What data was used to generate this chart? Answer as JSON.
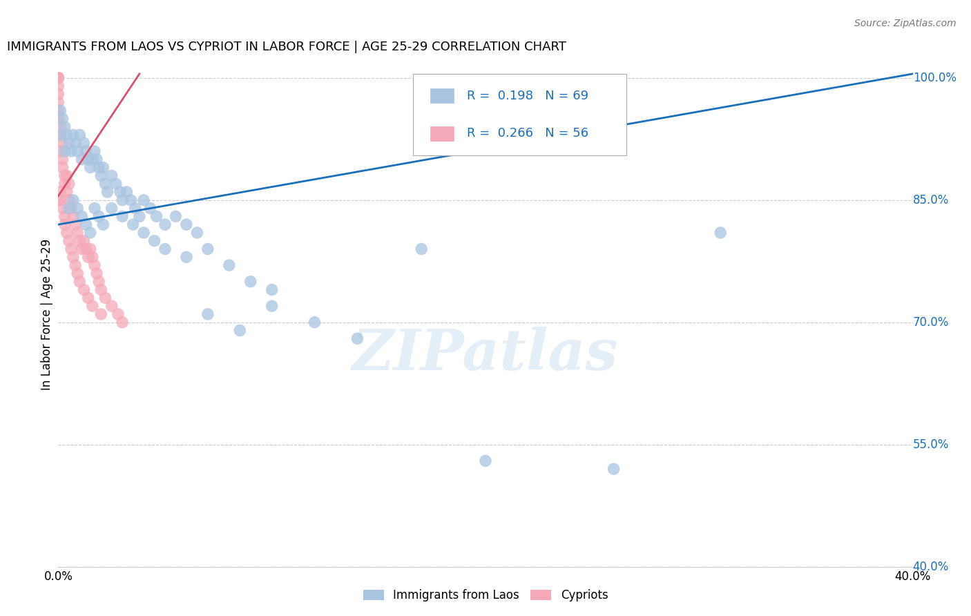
{
  "title": "IMMIGRANTS FROM LAOS VS CYPRIOT IN LABOR FORCE | AGE 25-29 CORRELATION CHART",
  "source": "Source: ZipAtlas.com",
  "ylabel": "In Labor Force | Age 25-29",
  "xlim": [
    0.0,
    0.4
  ],
  "ylim": [
    0.4,
    1.02
  ],
  "yticks": [
    0.4,
    0.55,
    0.7,
    0.85,
    1.0
  ],
  "xticks": [
    0.0,
    0.05,
    0.1,
    0.15,
    0.2,
    0.25,
    0.3,
    0.35,
    0.4
  ],
  "blue_R": 0.198,
  "blue_N": 69,
  "pink_R": 0.266,
  "pink_N": 56,
  "blue_color": "#a8c4e0",
  "pink_color": "#f4a8b8",
  "blue_line_color": "#1a6fbd",
  "pink_line_color": "#d94f6e",
  "watermark_text": "ZIPatlas",
  "blue_line": [
    0.0,
    0.82,
    0.4,
    1.005
  ],
  "pink_line": [
    0.0,
    0.855,
    0.038,
    1.005
  ],
  "blue_scatter_x": [
    0.001,
    0.001,
    0.002,
    0.003,
    0.003,
    0.004,
    0.005,
    0.006,
    0.007,
    0.008,
    0.009,
    0.01,
    0.011,
    0.012,
    0.013,
    0.014,
    0.015,
    0.016,
    0.017,
    0.018,
    0.019,
    0.02,
    0.021,
    0.022,
    0.023,
    0.025,
    0.027,
    0.029,
    0.03,
    0.032,
    0.034,
    0.036,
    0.038,
    0.04,
    0.043,
    0.046,
    0.05,
    0.055,
    0.06,
    0.065,
    0.07,
    0.08,
    0.09,
    0.1,
    0.005,
    0.007,
    0.009,
    0.011,
    0.013,
    0.015,
    0.017,
    0.019,
    0.021,
    0.025,
    0.03,
    0.035,
    0.04,
    0.045,
    0.05,
    0.06,
    0.07,
    0.085,
    0.1,
    0.12,
    0.14,
    0.17,
    0.2,
    0.26,
    0.31
  ],
  "blue_scatter_y": [
    0.96,
    0.93,
    0.95,
    0.94,
    0.91,
    0.93,
    0.92,
    0.91,
    0.93,
    0.92,
    0.91,
    0.93,
    0.9,
    0.92,
    0.91,
    0.9,
    0.89,
    0.9,
    0.91,
    0.9,
    0.89,
    0.88,
    0.89,
    0.87,
    0.86,
    0.88,
    0.87,
    0.86,
    0.85,
    0.86,
    0.85,
    0.84,
    0.83,
    0.85,
    0.84,
    0.83,
    0.82,
    0.83,
    0.82,
    0.81,
    0.79,
    0.77,
    0.75,
    0.74,
    0.84,
    0.85,
    0.84,
    0.83,
    0.82,
    0.81,
    0.84,
    0.83,
    0.82,
    0.84,
    0.83,
    0.82,
    0.81,
    0.8,
    0.79,
    0.78,
    0.71,
    0.69,
    0.72,
    0.7,
    0.68,
    0.79,
    0.53,
    0.52,
    0.81
  ],
  "pink_scatter_x": [
    0.0,
    0.0,
    0.0,
    0.0,
    0.0,
    0.0,
    0.0,
    0.0,
    0.001,
    0.001,
    0.001,
    0.002,
    0.002,
    0.002,
    0.003,
    0.003,
    0.004,
    0.004,
    0.005,
    0.005,
    0.006,
    0.007,
    0.008,
    0.009,
    0.01,
    0.011,
    0.012,
    0.013,
    0.014,
    0.015,
    0.016,
    0.017,
    0.018,
    0.019,
    0.02,
    0.022,
    0.025,
    0.028,
    0.03,
    0.0,
    0.001,
    0.001,
    0.002,
    0.003,
    0.003,
    0.004,
    0.005,
    0.006,
    0.007,
    0.008,
    0.009,
    0.01,
    0.012,
    0.014,
    0.016,
    0.02
  ],
  "pink_scatter_y": [
    1.0,
    1.0,
    1.0,
    0.99,
    0.98,
    0.97,
    0.96,
    0.95,
    0.94,
    0.93,
    0.91,
    0.92,
    0.9,
    0.89,
    0.88,
    0.87,
    0.88,
    0.86,
    0.87,
    0.85,
    0.84,
    0.83,
    0.82,
    0.81,
    0.8,
    0.79,
    0.8,
    0.79,
    0.78,
    0.79,
    0.78,
    0.77,
    0.76,
    0.75,
    0.74,
    0.73,
    0.72,
    0.71,
    0.7,
    0.85,
    0.86,
    0.85,
    0.84,
    0.83,
    0.82,
    0.81,
    0.8,
    0.79,
    0.78,
    0.77,
    0.76,
    0.75,
    0.74,
    0.73,
    0.72,
    0.71
  ]
}
